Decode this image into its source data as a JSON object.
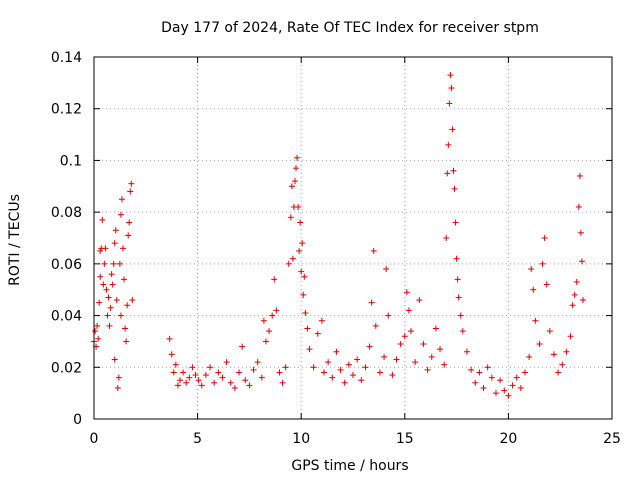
{
  "chart_data": {
    "type": "scatter",
    "title": "Day 177 of 2024, Rate Of TEC Index for receiver stpm",
    "xlabel": "GPS time / hours",
    "ylabel": "ROTI / TECUs",
    "xlim": [
      0,
      25
    ],
    "ylim": [
      0,
      0.14
    ],
    "xticks": [
      0,
      5,
      10,
      15,
      20,
      25
    ],
    "xtick_labels": [
      "0",
      "5",
      "10",
      "15",
      "20",
      "25"
    ],
    "yticks": [
      0,
      0.02,
      0.04,
      0.06,
      0.08,
      0.1,
      0.12,
      0.14
    ],
    "ytick_labels": [
      "0",
      "0.02",
      "0.04",
      "0.06",
      "0.08",
      "0.1",
      "0.12",
      "0.14"
    ],
    "grid": true,
    "marker": "+",
    "color": "#e00000",
    "series": [
      {
        "name": "ROTI",
        "points": [
          [
            0.0,
            0.03
          ],
          [
            0.05,
            0.034
          ],
          [
            0.1,
            0.028
          ],
          [
            0.15,
            0.036
          ],
          [
            0.2,
            0.031
          ],
          [
            0.25,
            0.045
          ],
          [
            0.3,
            0.055
          ],
          [
            0.3,
            0.065
          ],
          [
            0.35,
            0.066
          ],
          [
            0.4,
            0.077
          ],
          [
            0.45,
            0.052
          ],
          [
            0.5,
            0.06
          ],
          [
            0.55,
            0.066
          ],
          [
            0.6,
            0.05
          ],
          [
            0.65,
            0.04
          ],
          [
            0.7,
            0.047
          ],
          [
            0.75,
            0.036
          ],
          [
            0.8,
            0.043
          ],
          [
            0.85,
            0.056
          ],
          [
            0.9,
            0.052
          ],
          [
            0.95,
            0.06
          ],
          [
            1.0,
            0.068
          ],
          [
            1.0,
            0.023
          ],
          [
            1.05,
            0.073
          ],
          [
            1.1,
            0.046
          ],
          [
            1.15,
            0.012
          ],
          [
            1.2,
            0.016
          ],
          [
            1.25,
            0.06
          ],
          [
            1.3,
            0.079
          ],
          [
            1.3,
            0.04
          ],
          [
            1.35,
            0.085
          ],
          [
            1.4,
            0.066
          ],
          [
            1.45,
            0.054
          ],
          [
            1.5,
            0.035
          ],
          [
            1.55,
            0.03
          ],
          [
            1.6,
            0.044
          ],
          [
            1.65,
            0.071
          ],
          [
            1.7,
            0.076
          ],
          [
            1.75,
            0.088
          ],
          [
            1.8,
            0.091
          ],
          [
            1.85,
            0.046
          ],
          [
            3.65,
            0.031
          ],
          [
            3.75,
            0.025
          ],
          [
            3.85,
            0.018
          ],
          [
            3.95,
            0.021
          ],
          [
            4.05,
            0.013
          ],
          [
            4.15,
            0.015
          ],
          [
            4.3,
            0.018
          ],
          [
            4.45,
            0.014
          ],
          [
            4.6,
            0.016
          ],
          [
            4.75,
            0.02
          ],
          [
            4.9,
            0.017
          ],
          [
            5.05,
            0.015
          ],
          [
            5.2,
            0.013
          ],
          [
            5.4,
            0.017
          ],
          [
            5.6,
            0.02
          ],
          [
            5.8,
            0.014
          ],
          [
            6.0,
            0.018
          ],
          [
            6.2,
            0.016
          ],
          [
            6.4,
            0.022
          ],
          [
            6.6,
            0.014
          ],
          [
            6.8,
            0.012
          ],
          [
            7.0,
            0.018
          ],
          [
            7.15,
            0.028
          ],
          [
            7.3,
            0.015
          ],
          [
            7.5,
            0.013
          ],
          [
            7.7,
            0.019
          ],
          [
            7.9,
            0.022
          ],
          [
            8.1,
            0.016
          ],
          [
            8.2,
            0.038
          ],
          [
            8.3,
            0.03
          ],
          [
            8.45,
            0.034
          ],
          [
            8.6,
            0.04
          ],
          [
            8.7,
            0.054
          ],
          [
            8.8,
            0.042
          ],
          [
            8.95,
            0.018
          ],
          [
            9.1,
            0.014
          ],
          [
            9.25,
            0.02
          ],
          [
            9.4,
            0.06
          ],
          [
            9.5,
            0.078
          ],
          [
            9.55,
            0.09
          ],
          [
            9.6,
            0.062
          ],
          [
            9.65,
            0.082
          ],
          [
            9.7,
            0.092
          ],
          [
            9.75,
            0.097
          ],
          [
            9.8,
            0.101
          ],
          [
            9.85,
            0.082
          ],
          [
            9.9,
            0.065
          ],
          [
            9.95,
            0.076
          ],
          [
            10.0,
            0.057
          ],
          [
            10.05,
            0.068
          ],
          [
            10.1,
            0.048
          ],
          [
            10.15,
            0.055
          ],
          [
            10.2,
            0.041
          ],
          [
            10.3,
            0.035
          ],
          [
            10.4,
            0.027
          ],
          [
            10.6,
            0.02
          ],
          [
            10.8,
            0.033
          ],
          [
            11.0,
            0.038
          ],
          [
            11.1,
            0.018
          ],
          [
            11.3,
            0.022
          ],
          [
            11.5,
            0.016
          ],
          [
            11.7,
            0.026
          ],
          [
            11.9,
            0.019
          ],
          [
            12.1,
            0.014
          ],
          [
            12.3,
            0.021
          ],
          [
            12.5,
            0.017
          ],
          [
            12.7,
            0.023
          ],
          [
            12.9,
            0.015
          ],
          [
            13.1,
            0.02
          ],
          [
            13.3,
            0.028
          ],
          [
            13.4,
            0.045
          ],
          [
            13.5,
            0.065
          ],
          [
            13.6,
            0.036
          ],
          [
            13.8,
            0.018
          ],
          [
            14.0,
            0.024
          ],
          [
            14.1,
            0.058
          ],
          [
            14.2,
            0.04
          ],
          [
            14.4,
            0.017
          ],
          [
            14.6,
            0.023
          ],
          [
            14.8,
            0.029
          ],
          [
            15.0,
            0.032
          ],
          [
            15.1,
            0.049
          ],
          [
            15.2,
            0.042
          ],
          [
            15.3,
            0.034
          ],
          [
            15.5,
            0.022
          ],
          [
            15.7,
            0.046
          ],
          [
            15.9,
            0.029
          ],
          [
            16.1,
            0.019
          ],
          [
            16.3,
            0.024
          ],
          [
            16.5,
            0.035
          ],
          [
            16.7,
            0.027
          ],
          [
            16.9,
            0.021
          ],
          [
            17.0,
            0.07
          ],
          [
            17.05,
            0.095
          ],
          [
            17.1,
            0.106
          ],
          [
            17.15,
            0.122
          ],
          [
            17.2,
            0.133
          ],
          [
            17.25,
            0.128
          ],
          [
            17.3,
            0.112
          ],
          [
            17.35,
            0.096
          ],
          [
            17.4,
            0.089
          ],
          [
            17.45,
            0.076
          ],
          [
            17.5,
            0.062
          ],
          [
            17.55,
            0.054
          ],
          [
            17.6,
            0.047
          ],
          [
            17.7,
            0.04
          ],
          [
            17.8,
            0.034
          ],
          [
            18.0,
            0.026
          ],
          [
            18.2,
            0.019
          ],
          [
            18.4,
            0.014
          ],
          [
            18.6,
            0.018
          ],
          [
            18.8,
            0.012
          ],
          [
            19.0,
            0.02
          ],
          [
            19.2,
            0.016
          ],
          [
            19.4,
            0.01
          ],
          [
            19.6,
            0.015
          ],
          [
            19.8,
            0.011
          ],
          [
            20.0,
            0.009
          ],
          [
            20.2,
            0.013
          ],
          [
            20.4,
            0.016
          ],
          [
            20.6,
            0.012
          ],
          [
            20.8,
            0.018
          ],
          [
            21.0,
            0.024
          ],
          [
            21.1,
            0.058
          ],
          [
            21.2,
            0.05
          ],
          [
            21.3,
            0.038
          ],
          [
            21.5,
            0.029
          ],
          [
            21.65,
            0.06
          ],
          [
            21.75,
            0.07
          ],
          [
            21.85,
            0.052
          ],
          [
            22.0,
            0.034
          ],
          [
            22.2,
            0.025
          ],
          [
            22.4,
            0.018
          ],
          [
            22.6,
            0.021
          ],
          [
            22.8,
            0.026
          ],
          [
            23.0,
            0.032
          ],
          [
            23.1,
            0.044
          ],
          [
            23.2,
            0.048
          ],
          [
            23.3,
            0.053
          ],
          [
            23.4,
            0.082
          ],
          [
            23.45,
            0.094
          ],
          [
            23.5,
            0.072
          ],
          [
            23.55,
            0.061
          ],
          [
            23.6,
            0.046
          ]
        ]
      }
    ]
  }
}
